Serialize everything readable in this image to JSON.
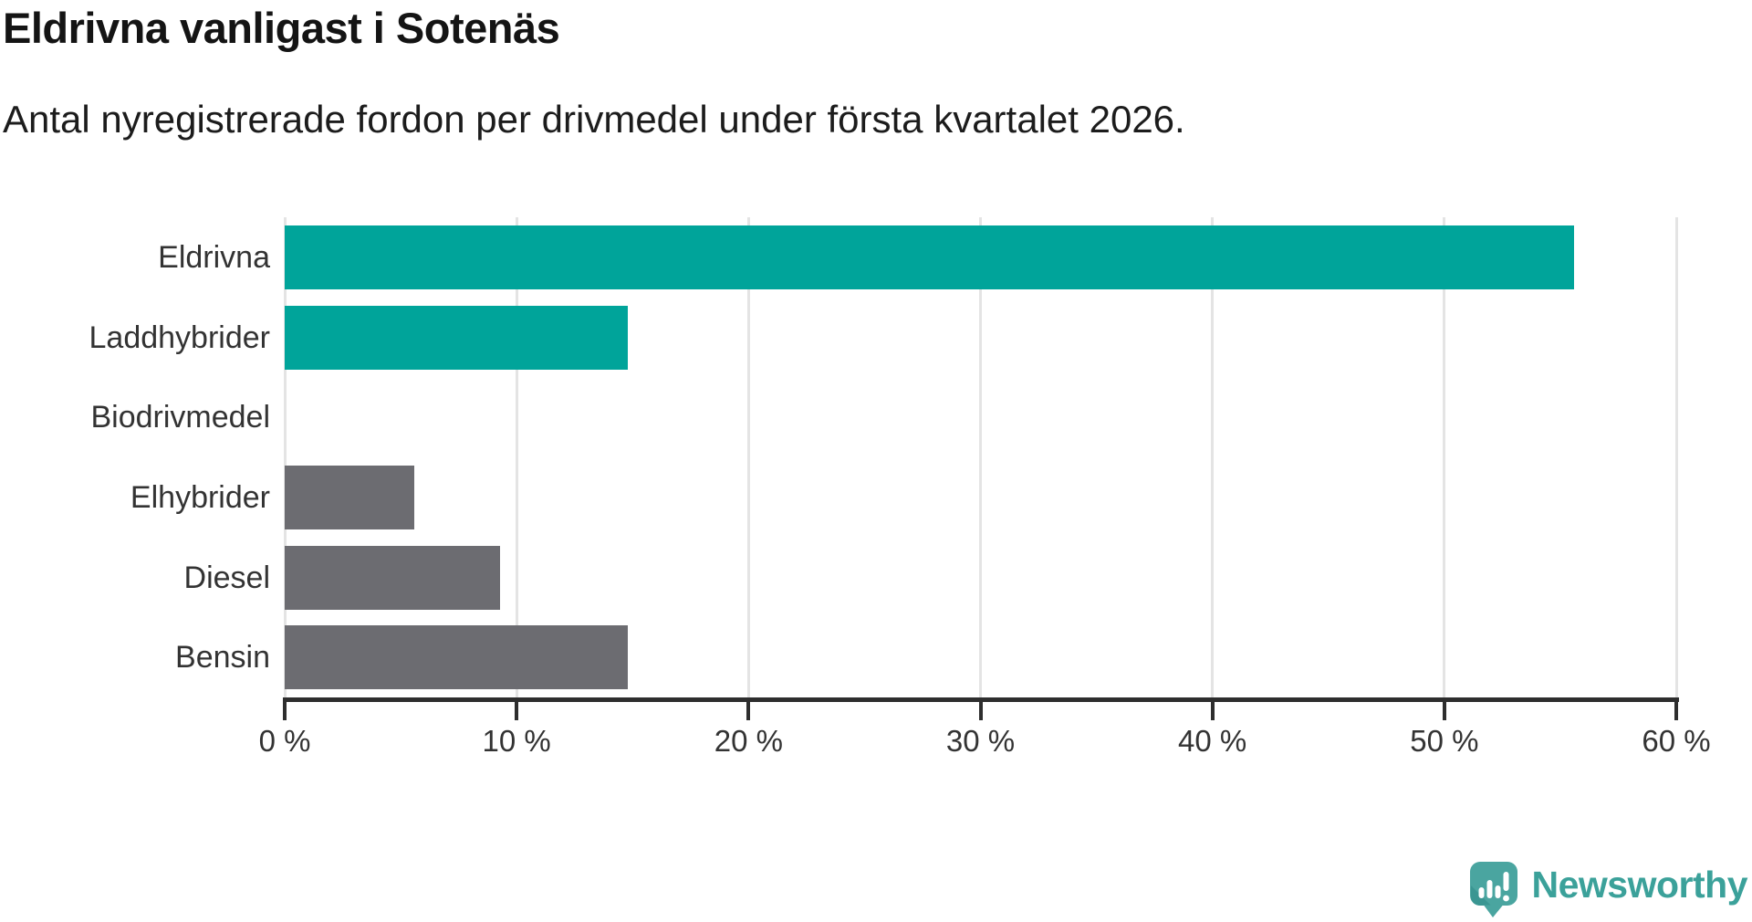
{
  "chart_data": {
    "type": "bar",
    "orientation": "horizontal",
    "title": "Eldrivna vanligast i Sotenäs",
    "subtitle": "Antal nyregistrerade fordon per drivmedel under första kvartalet 2026.",
    "categories": [
      "Eldrivna",
      "Laddhybrider",
      "Biodrivmedel",
      "Elhybrider",
      "Diesel",
      "Bensin"
    ],
    "values": [
      55.6,
      14.8,
      0,
      5.6,
      9.3,
      14.8
    ],
    "unit": "%",
    "series_colors": [
      "#00a49a",
      "#00a49a",
      "#00a49a",
      "#6c6c71",
      "#6c6c71",
      "#6c6c71"
    ],
    "xlim": [
      0,
      60
    ],
    "x_ticks": [
      0,
      10,
      20,
      30,
      40,
      50,
      60
    ],
    "x_tick_labels": [
      "0 %",
      "10 %",
      "20 %",
      "30 %",
      "40 %",
      "50 %",
      "60 %"
    ],
    "grid": true,
    "legend": false
  },
  "colors": {
    "accent_teal": "#00a49a",
    "bar_gray": "#6c6c71",
    "axis": "#2e2e2e",
    "grid_line": "#e4e4e4",
    "label_text": "#333333",
    "logo_teal": "#3ba19a"
  },
  "branding": {
    "logo_text": "Newsworthy"
  }
}
